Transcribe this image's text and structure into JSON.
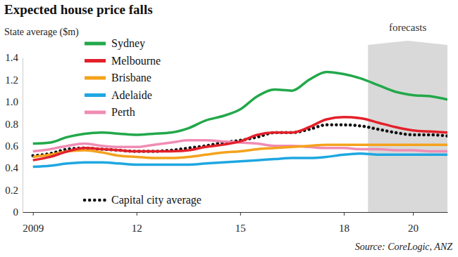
{
  "chart_data": {
    "type": "line",
    "title": "Expected house price falls",
    "subtitle": "State average ($m)",
    "source": "Source: CoreLogic, ANZ",
    "x": [
      2009,
      2009.5,
      2010,
      2010.5,
      2011,
      2011.5,
      2012,
      2012.5,
      2013,
      2013.5,
      2014,
      2014.5,
      2015,
      2015.5,
      2016,
      2016.5,
      2017,
      2017.5,
      2018,
      2018.5,
      2019,
      2019.5,
      2020,
      2020.5,
      2021
    ],
    "series": [
      {
        "name": "Sydney",
        "color": "#22a84a",
        "line_style": "solid",
        "values": [
          0.62,
          0.63,
          0.68,
          0.71,
          0.72,
          0.71,
          0.7,
          0.71,
          0.72,
          0.76,
          0.83,
          0.87,
          0.93,
          1.05,
          1.11,
          1.1,
          1.2,
          1.27,
          1.25,
          1.21,
          1.15,
          1.09,
          1.06,
          1.05,
          1.02
        ]
      },
      {
        "name": "Melbourne",
        "color": "#e3202a",
        "line_style": "solid",
        "values": [
          0.47,
          0.5,
          0.55,
          0.58,
          0.57,
          0.56,
          0.55,
          0.55,
          0.55,
          0.56,
          0.59,
          0.61,
          0.64,
          0.7,
          0.72,
          0.72,
          0.77,
          0.84,
          0.86,
          0.85,
          0.81,
          0.77,
          0.74,
          0.73,
          0.72
        ]
      },
      {
        "name": "Brisbane",
        "color": "#f4a21c",
        "line_style": "solid",
        "values": [
          0.5,
          0.52,
          0.55,
          0.56,
          0.54,
          0.51,
          0.5,
          0.49,
          0.49,
          0.5,
          0.52,
          0.54,
          0.55,
          0.57,
          0.58,
          0.59,
          0.6,
          0.61,
          0.61,
          0.61,
          0.61,
          0.61,
          0.61,
          0.61,
          0.61
        ]
      },
      {
        "name": "Adelaide",
        "color": "#1ea7e1",
        "line_style": "solid",
        "values": [
          0.41,
          0.42,
          0.44,
          0.45,
          0.45,
          0.44,
          0.43,
          0.43,
          0.43,
          0.43,
          0.44,
          0.45,
          0.46,
          0.47,
          0.48,
          0.49,
          0.49,
          0.5,
          0.52,
          0.53,
          0.52,
          0.52,
          0.52,
          0.52,
          0.52
        ]
      },
      {
        "name": "Perth",
        "color": "#f08cb4",
        "line_style": "solid",
        "values": [
          0.55,
          0.57,
          0.6,
          0.62,
          0.6,
          0.59,
          0.59,
          0.61,
          0.63,
          0.65,
          0.65,
          0.64,
          0.63,
          0.62,
          0.6,
          0.6,
          0.59,
          0.58,
          0.58,
          0.57,
          0.57,
          0.56,
          0.56,
          0.55,
          0.55
        ]
      },
      {
        "name": "Capital city average",
        "color": "#111111",
        "line_style": "dotted",
        "values": [
          0.51,
          0.53,
          0.57,
          0.58,
          0.57,
          0.56,
          0.55,
          0.55,
          0.56,
          0.58,
          0.6,
          0.63,
          0.65,
          0.68,
          0.72,
          0.72,
          0.75,
          0.79,
          0.79,
          0.78,
          0.75,
          0.72,
          0.7,
          0.7,
          0.69
        ]
      }
    ],
    "xlim": [
      2008.7,
      2021
    ],
    "xticks": [
      2009,
      {
        "value": 2012,
        "label": "12"
      },
      {
        "value": 2015,
        "label": "15"
      },
      {
        "value": 2018,
        "label": "18"
      },
      {
        "value": 2020,
        "label": "20"
      }
    ],
    "ylim": [
      0,
      1.4
    ],
    "yticks": [
      0,
      0.2,
      0.4,
      0.6,
      0.8,
      {
        "value": 1,
        "label": "1.0"
      },
      1.2,
      1.4
    ],
    "annotations": [
      {
        "text": "forecasts",
        "x0": 2018.7,
        "x1": 2021
      }
    ],
    "grid": false,
    "legend": "upper left"
  }
}
